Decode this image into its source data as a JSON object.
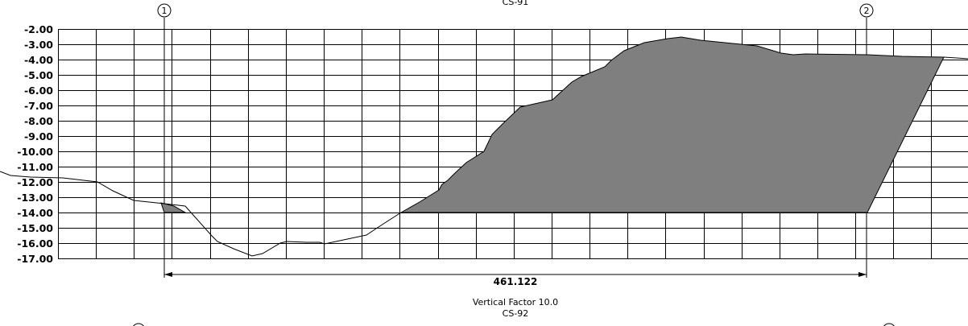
{
  "section_top": {
    "label": "CS-91"
  },
  "section_bottom": {
    "label": "CS-92"
  },
  "vertical_factor": "Vertical Factor 10.0",
  "markers": [
    {
      "label": "1"
    },
    {
      "label": "2"
    }
  ],
  "dimension": {
    "value": "461.122"
  },
  "y_axis": {
    "labels": [
      "-2.00",
      "-3.00",
      "-4.00",
      "-5.00",
      "-6.00",
      "-7.00",
      "-8.00",
      "-9.00",
      "-10.00",
      "-11.00",
      "-12.00",
      "-13.00",
      "-14.00",
      "-15.00",
      "-16.00",
      "-17.00"
    ],
    "min": -17,
    "max": -2
  },
  "colors": {
    "line": "#000000",
    "shade": "#7f7f7f",
    "background": "#ffffff"
  }
}
